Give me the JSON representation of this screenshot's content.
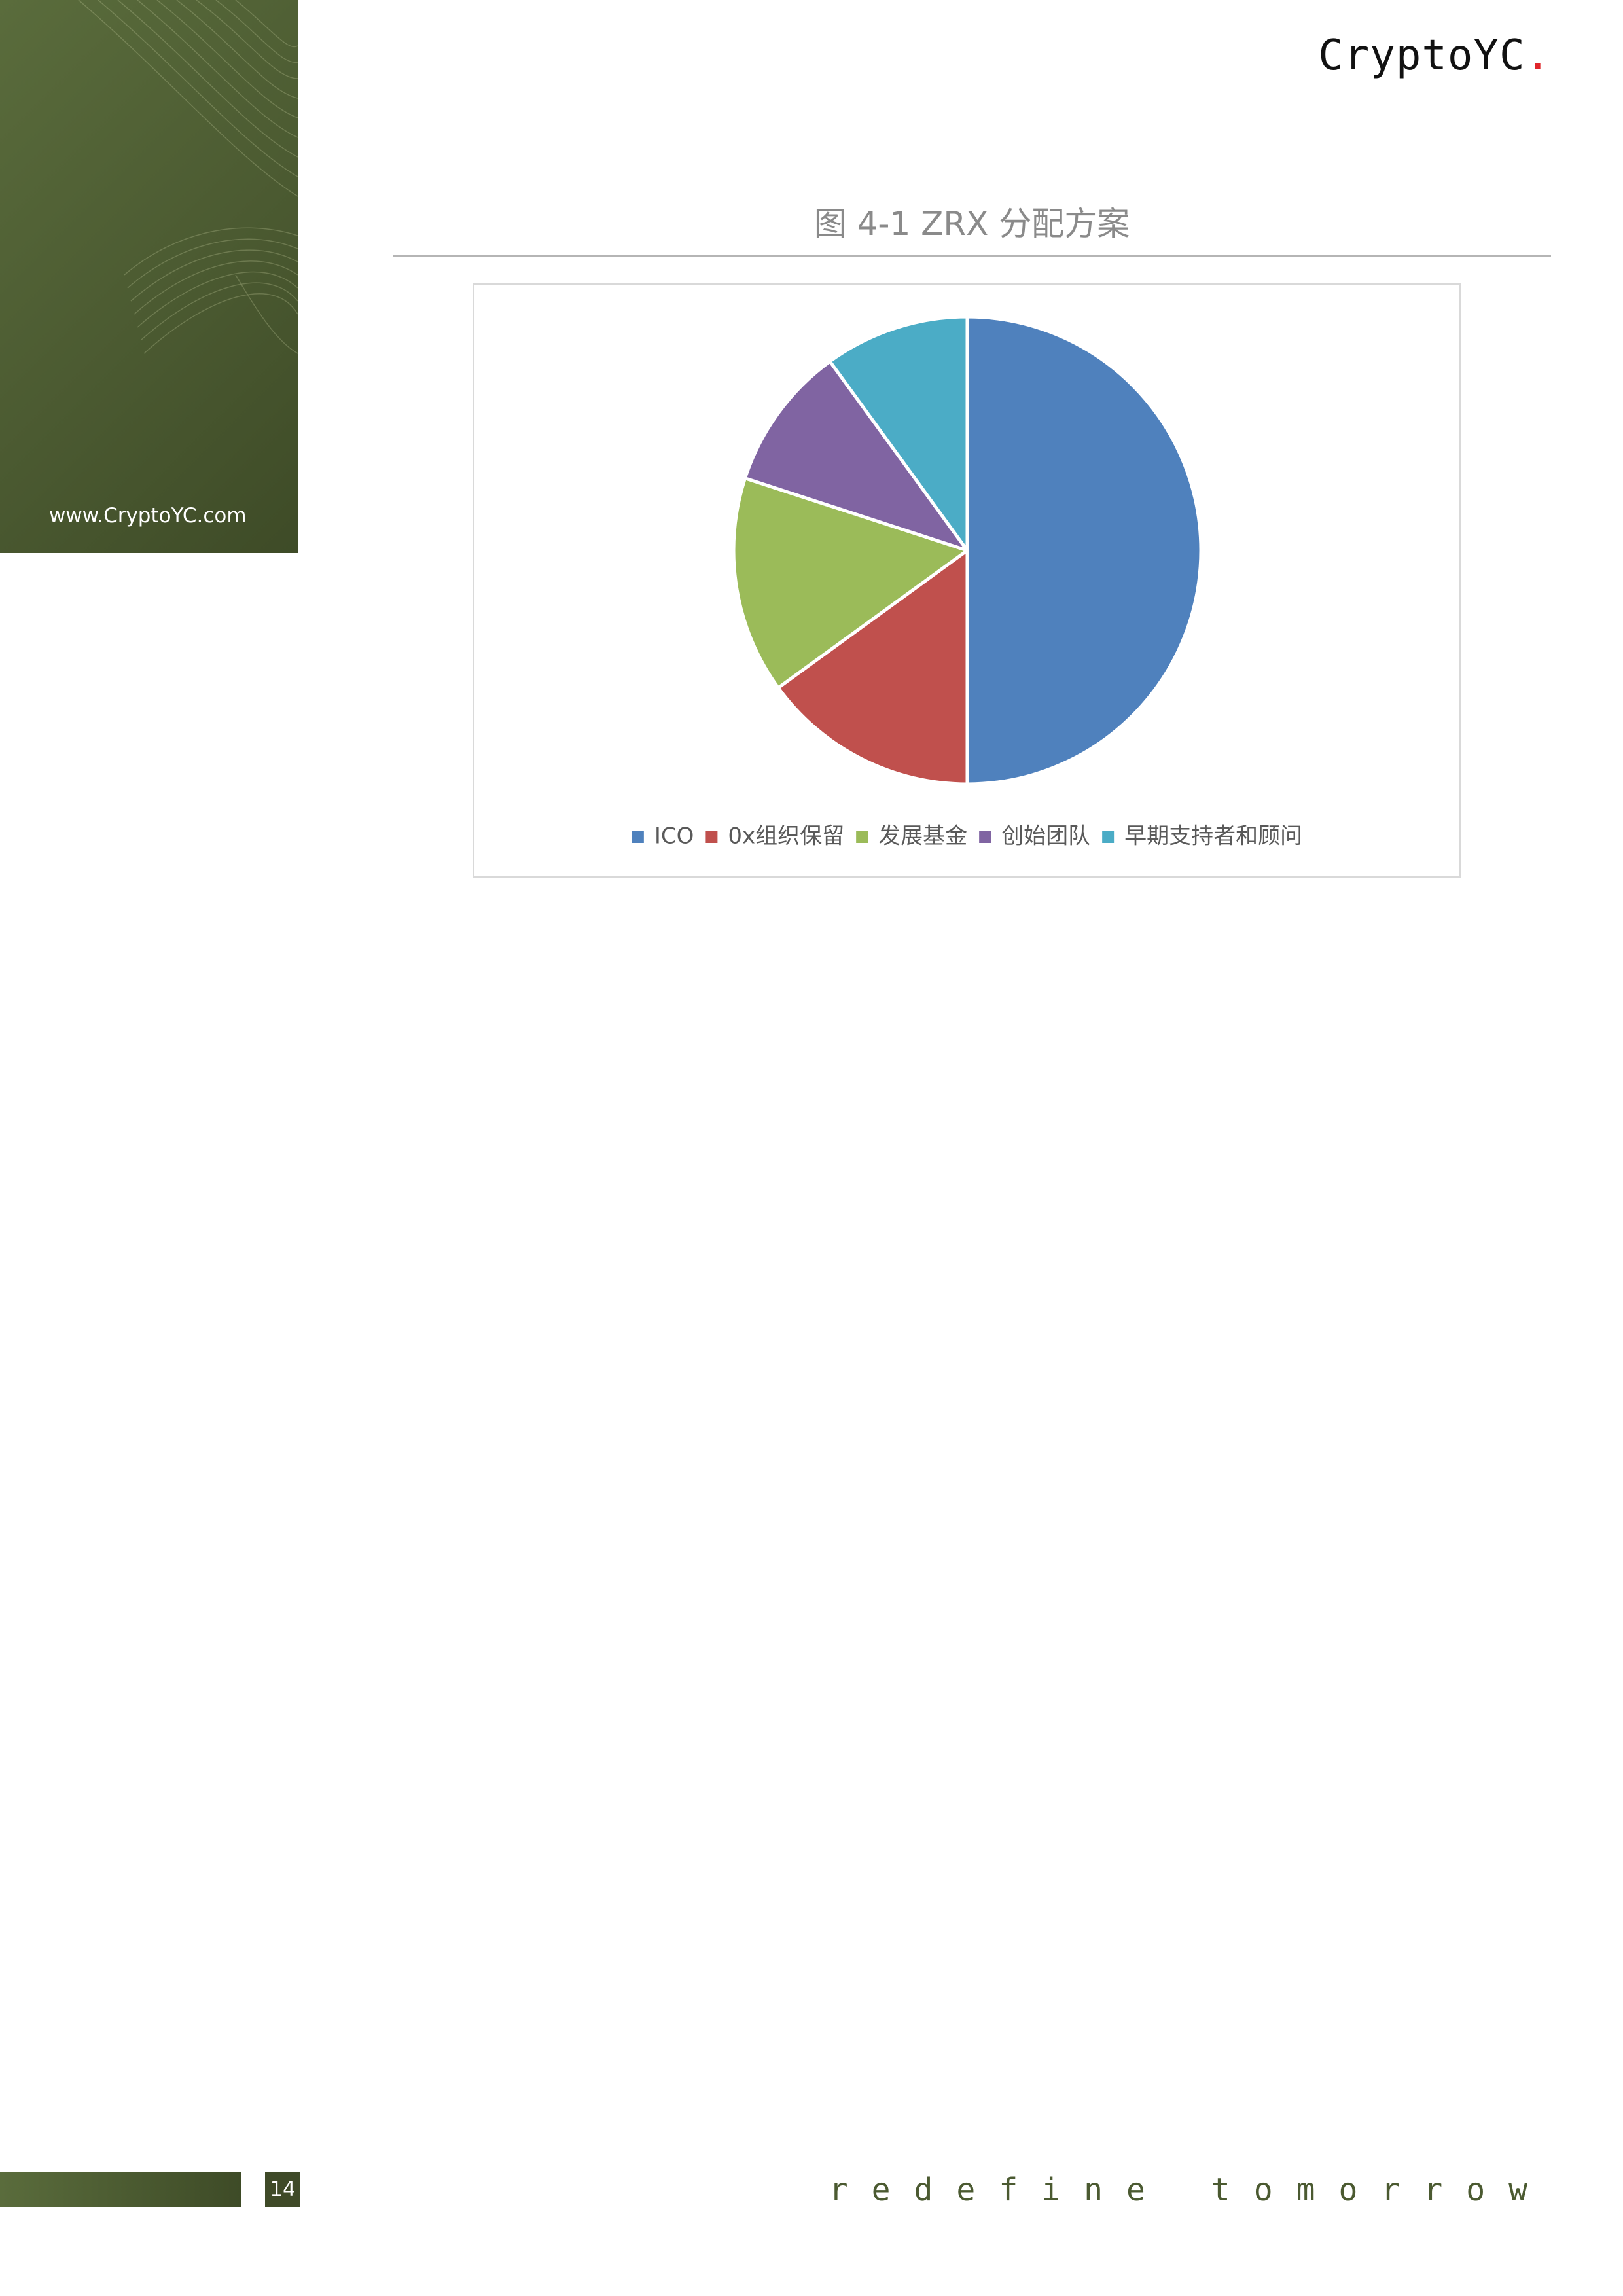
{
  "brand": {
    "name": "CryptoYC",
    "dot": "."
  },
  "side_panel": {
    "url": "www.CryptoYC.com"
  },
  "figure": {
    "title": "图 4-1 ZRX 分配方案"
  },
  "footer": {
    "page_number": "14",
    "tagline": "redefine tomorrow"
  },
  "chart_data": {
    "type": "pie",
    "title": "图 4-1 ZRX 分配方案",
    "categories": [
      "ICO",
      "0x组织保留",
      "发展基金",
      "创始团队",
      "早期支持者和顾问"
    ],
    "values": [
      50,
      15,
      15,
      10,
      10
    ],
    "colors": [
      "#4f81bd",
      "#c0504d",
      "#9bbb59",
      "#8064a2",
      "#4bacc6"
    ],
    "legend_position": "bottom"
  }
}
